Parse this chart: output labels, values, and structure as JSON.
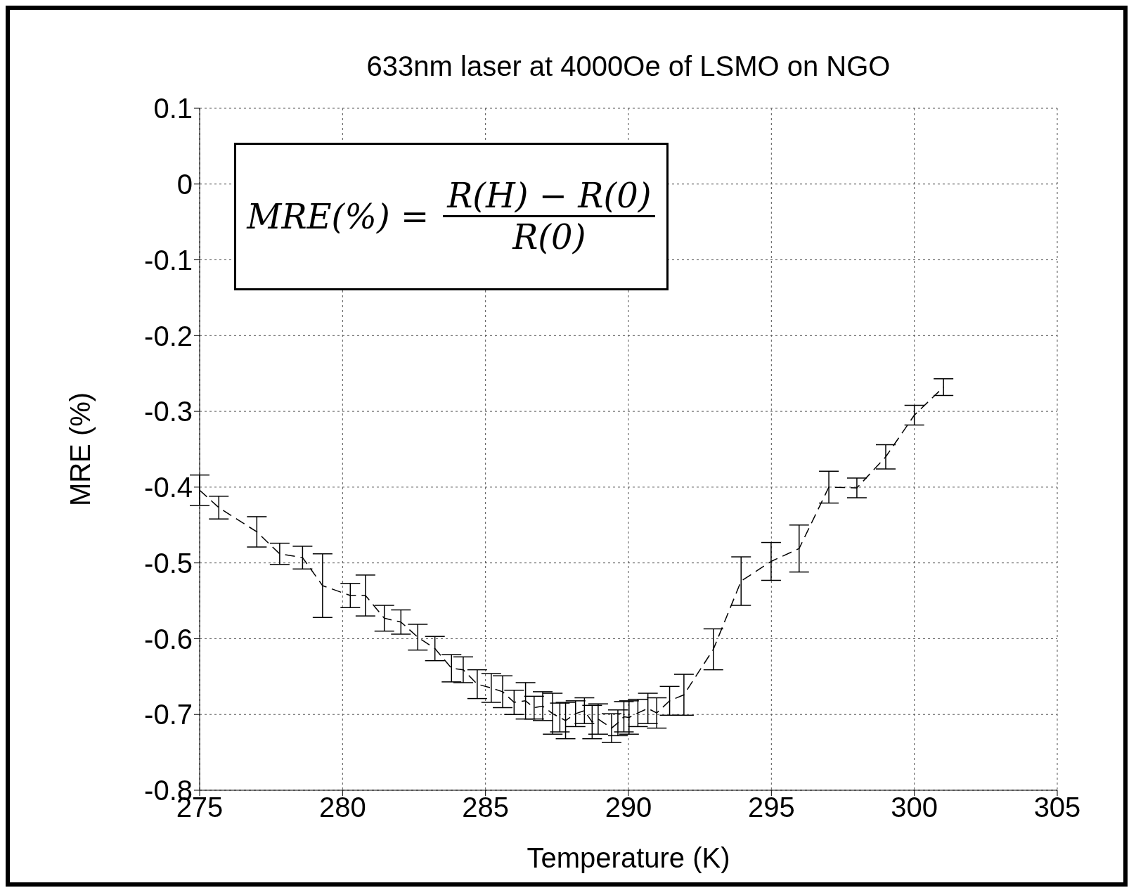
{
  "chart_data": {
    "type": "line",
    "title": "633nm laser at 4000Oe of LSMO on NGO",
    "xlabel": "Temperature (K)",
    "ylabel": "MRE (%)",
    "annotations": [
      "MRE(%) =",
      "R(H) − R(0)",
      "R(0)"
    ],
    "x": [
      275,
      275.67,
      277,
      277.8,
      278.6,
      279.3,
      280.27,
      280.8,
      281.46,
      282.04,
      282.63,
      283.23,
      283.81,
      284.22,
      284.71,
      285.2,
      285.6,
      286.0,
      286.4,
      286.7,
      287.0,
      287.35,
      287.6,
      287.8,
      288.15,
      288.46,
      288.73,
      288.94,
      289.41,
      289.63,
      289.84,
      290.02,
      290.33,
      290.68,
      290.99,
      291.44,
      291.94,
      292.97,
      293.94,
      294.99,
      295.97,
      297.01,
      297.99,
      299.0,
      300.0,
      301.02
    ],
    "series": [
      {
        "color": "#000000",
        "line_style": "dashed",
        "marker": "none",
        "values": [
          -0.404,
          -0.427,
          -0.459,
          -0.488,
          -0.493,
          -0.53,
          -0.543,
          -0.543,
          -0.573,
          -0.578,
          -0.598,
          -0.613,
          -0.639,
          -0.641,
          -0.66,
          -0.665,
          -0.67,
          -0.684,
          -0.682,
          -0.691,
          -0.689,
          -0.699,
          -0.704,
          -0.708,
          -0.699,
          -0.695,
          -0.71,
          -0.706,
          -0.718,
          -0.711,
          -0.703,
          -0.704,
          -0.698,
          -0.692,
          -0.698,
          -0.682,
          -0.674,
          -0.614,
          -0.524,
          -0.498,
          -0.481,
          -0.4,
          -0.401,
          -0.36,
          -0.305,
          -0.268
        ],
        "errors": [
          0.02,
          0.015,
          0.02,
          0.014,
          0.015,
          0.042,
          0.016,
          0.027,
          0.017,
          0.016,
          0.017,
          0.016,
          0.018,
          0.017,
          0.019,
          0.019,
          0.021,
          0.016,
          0.024,
          0.015,
          0.019,
          0.027,
          0.019,
          0.024,
          0.017,
          0.017,
          0.022,
          0.02,
          0.019,
          0.017,
          0.02,
          0.022,
          0.018,
          0.02,
          0.02,
          0.019,
          0.027,
          0.027,
          0.032,
          0.025,
          0.031,
          0.021,
          0.013,
          0.016,
          0.013,
          0.011
        ]
      }
    ],
    "xlim": [
      275,
      305
    ],
    "xticks": [
      275,
      280,
      285,
      290,
      295,
      300,
      305
    ],
    "ylim": [
      -0.8,
      0.1
    ],
    "yticks": [
      -0.8,
      -0.7,
      -0.6,
      -0.5,
      -0.4,
      -0.3,
      -0.2,
      -0.1,
      0,
      0.1
    ],
    "grid": true
  }
}
